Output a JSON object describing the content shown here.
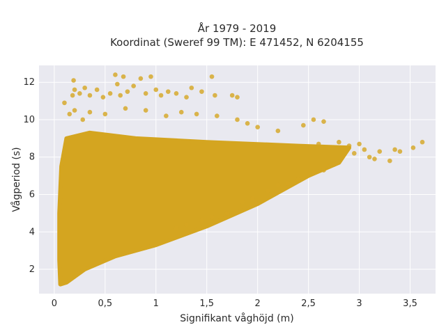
{
  "chart_data": {
    "type": "scatter",
    "title_line1": "År 1979 - 2019",
    "title_line2": "Koordinat (Sweref 99 TM): E 471452, N 6204155",
    "xlabel": "Signifikant våghöjd (m)",
    "ylabel": "Vågperiod (s)",
    "xlim": [
      -0.15,
      3.75
    ],
    "ylim": [
      0.7,
      12.9
    ],
    "xticks": [
      0,
      0.5,
      1,
      1.5,
      2,
      2.5,
      3,
      3.5
    ],
    "xtick_labels": [
      "0",
      "0,5",
      "1",
      "1,5",
      "2",
      "2,5",
      "3",
      "3,5"
    ],
    "yticks": [
      2,
      4,
      6,
      8,
      10,
      12
    ],
    "ytick_labels": [
      "2",
      "4",
      "6",
      "8",
      "10",
      "12"
    ],
    "grid": true,
    "background": "#e9e9f0",
    "grid_color": "#ffffff",
    "marker_color": "#d4a520",
    "dense_region": {
      "description_points": [
        [
          0.06,
          1.2
        ],
        [
          0.12,
          1.3
        ],
        [
          0.3,
          2.0
        ],
        [
          0.6,
          2.7
        ],
        [
          1.0,
          3.3
        ],
        [
          1.5,
          4.3
        ],
        [
          2.0,
          5.5
        ],
        [
          2.5,
          7.0
        ],
        [
          2.8,
          7.7
        ],
        [
          2.9,
          8.5
        ],
        [
          2.4,
          8.6
        ],
        [
          1.5,
          8.8
        ],
        [
          0.8,
          9.0
        ],
        [
          0.35,
          9.3
        ],
        [
          0.12,
          9.0
        ],
        [
          0.07,
          7.5
        ],
        [
          0.05,
          5.0
        ],
        [
          0.05,
          2.5
        ]
      ]
    },
    "outlier_points": [
      [
        0.18,
        11.3
      ],
      [
        0.19,
        12.1
      ],
      [
        0.2,
        11.6
      ],
      [
        0.25,
        11.4
      ],
      [
        0.3,
        11.7
      ],
      [
        0.35,
        11.3
      ],
      [
        0.42,
        11.6
      ],
      [
        0.48,
        11.2
      ],
      [
        0.55,
        11.4
      ],
      [
        0.6,
        12.4
      ],
      [
        0.62,
        11.9
      ],
      [
        0.65,
        11.3
      ],
      [
        0.68,
        12.3
      ],
      [
        0.72,
        11.5
      ],
      [
        0.78,
        11.8
      ],
      [
        0.85,
        12.2
      ],
      [
        0.9,
        11.4
      ],
      [
        0.95,
        12.3
      ],
      [
        1.0,
        11.6
      ],
      [
        1.05,
        11.3
      ],
      [
        1.12,
        11.5
      ],
      [
        1.2,
        11.4
      ],
      [
        1.3,
        11.2
      ],
      [
        1.35,
        11.7
      ],
      [
        1.45,
        11.5
      ],
      [
        1.55,
        12.3
      ],
      [
        1.58,
        11.3
      ],
      [
        1.75,
        11.3
      ],
      [
        1.8,
        11.2
      ],
      [
        0.2,
        10.5
      ],
      [
        0.35,
        10.4
      ],
      [
        0.5,
        10.3
      ],
      [
        0.7,
        10.6
      ],
      [
        0.9,
        10.5
      ],
      [
        1.1,
        10.2
      ],
      [
        1.25,
        10.4
      ],
      [
        1.4,
        10.3
      ],
      [
        1.6,
        10.2
      ],
      [
        1.8,
        10.0
      ],
      [
        2.0,
        9.6
      ],
      [
        2.2,
        9.4
      ],
      [
        2.45,
        9.7
      ],
      [
        2.55,
        10.0
      ],
      [
        2.65,
        9.9
      ],
      [
        0.1,
        10.9
      ],
      [
        0.15,
        10.3
      ],
      [
        0.28,
        10.0
      ],
      [
        1.9,
        9.8
      ],
      [
        2.6,
        8.7
      ],
      [
        2.7,
        8.5
      ],
      [
        2.8,
        8.8
      ],
      [
        2.85,
        8.3
      ],
      [
        2.9,
        8.6
      ],
      [
        2.95,
        8.2
      ],
      [
        3.0,
        8.7
      ],
      [
        3.05,
        8.4
      ],
      [
        3.1,
        8.0
      ],
      [
        3.15,
        7.9
      ],
      [
        3.2,
        8.3
      ],
      [
        3.3,
        7.8
      ],
      [
        3.35,
        8.4
      ],
      [
        3.4,
        8.3
      ],
      [
        3.53,
        8.5
      ],
      [
        3.62,
        8.8
      ],
      [
        2.75,
        7.6
      ],
      [
        2.65,
        7.3
      ],
      [
        2.55,
        7.2
      ],
      [
        2.4,
        6.8
      ],
      [
        2.3,
        6.6
      ],
      [
        2.2,
        6.5
      ],
      [
        2.1,
        6.2
      ],
      [
        1.95,
        5.8
      ],
      [
        1.85,
        5.6
      ],
      [
        1.7,
        5.0
      ],
      [
        1.55,
        4.8
      ],
      [
        1.45,
        4.6
      ],
      [
        1.3,
        4.4
      ],
      [
        1.2,
        4.2
      ]
    ]
  }
}
